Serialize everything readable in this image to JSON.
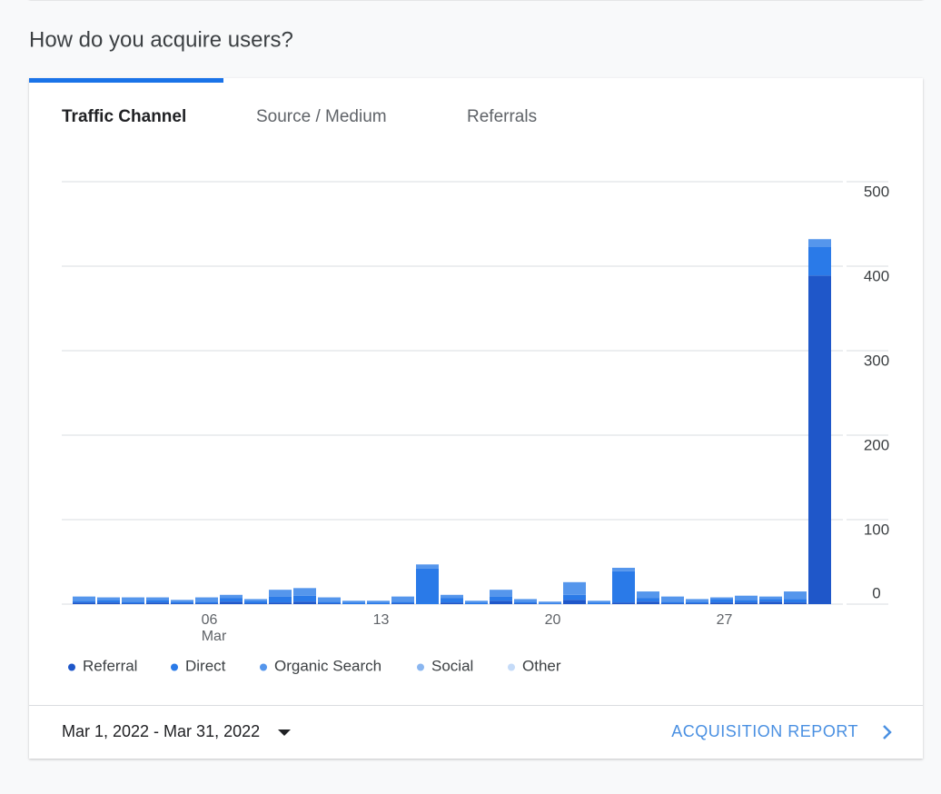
{
  "section_title": "How do you acquire users?",
  "tabs": [
    "Traffic Channel",
    "Source / Medium",
    "Referrals"
  ],
  "chart_data": {
    "type": "bar",
    "stacked": true,
    "categories": [
      null,
      null,
      null,
      null,
      null,
      "06",
      null,
      null,
      null,
      null,
      null,
      null,
      "13",
      null,
      null,
      null,
      null,
      null,
      null,
      "20",
      null,
      null,
      null,
      null,
      null,
      null,
      "27",
      null,
      null,
      null,
      null
    ],
    "month_label": "Mar",
    "series": [
      {
        "name": "Referral",
        "color": "#1f57c9",
        "values": [
          2,
          2,
          1,
          2,
          1,
          1,
          3,
          1,
          2,
          3,
          1,
          0,
          0,
          1,
          0,
          2,
          0,
          4,
          1,
          0,
          5,
          0,
          2,
          3,
          1,
          1,
          2,
          2,
          3,
          2,
          389
        ]
      },
      {
        "name": "Direct",
        "color": "#2a7ae8",
        "values": [
          2,
          3,
          2,
          3,
          2,
          2,
          4,
          3,
          7,
          7,
          2,
          2,
          2,
          2,
          42,
          5,
          2,
          5,
          2,
          1,
          6,
          2,
          37,
          4,
          2,
          2,
          4,
          3,
          3,
          4,
          34
        ]
      },
      {
        "name": "Organic Search",
        "color": "#5596ec",
        "values": [
          5,
          3,
          5,
          3,
          2,
          5,
          4,
          2,
          8,
          9,
          5,
          2,
          2,
          6,
          5,
          4,
          2,
          8,
          3,
          2,
          15,
          2,
          4,
          8,
          6,
          3,
          2,
          5,
          3,
          9,
          9
        ]
      },
      {
        "name": "Social",
        "color": "#8ab6f0",
        "values": [
          0,
          0,
          0,
          0,
          0,
          0,
          0,
          0,
          0,
          0,
          0,
          0,
          0,
          0,
          0,
          0,
          0,
          0,
          0,
          0,
          0,
          0,
          0,
          0,
          0,
          0,
          0,
          0,
          0,
          0,
          0
        ]
      },
      {
        "name": "Other",
        "color": "#c5dbf8",
        "values": [
          0,
          0,
          0,
          0,
          0,
          0,
          0,
          0,
          0,
          0,
          0,
          0,
          0,
          0,
          0,
          0,
          0,
          0,
          0,
          0,
          0,
          0,
          0,
          0,
          0,
          0,
          0,
          0,
          0,
          0,
          0
        ]
      }
    ],
    "ylim": [
      0,
      500
    ],
    "yticks": [
      0,
      100,
      200,
      300,
      400,
      500
    ],
    "grid": true
  },
  "footer": {
    "date_range": "Mar 1, 2022 - Mar 31, 2022",
    "link": "ACQUISITION REPORT"
  }
}
